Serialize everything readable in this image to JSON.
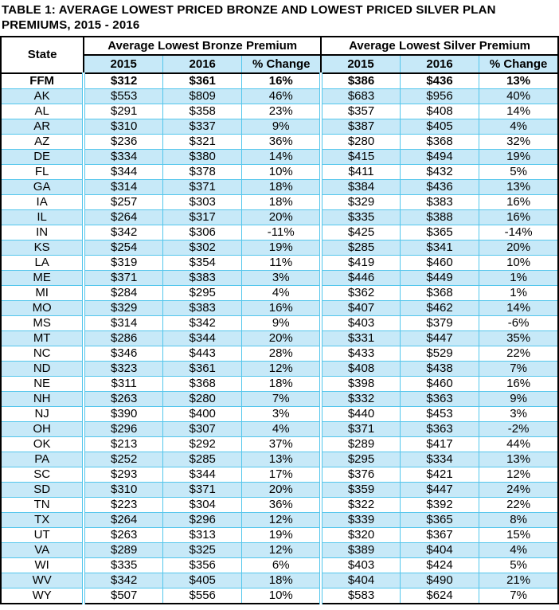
{
  "title": "TABLE 1: AVERAGE LOWEST PRICED BRONZE AND LOWEST PRICED SILVER PLAN PREMIUMS, 2015 - 2016",
  "colors": {
    "row_stripe": "#c7e9f8",
    "grid_line": "#53c6ec",
    "border": "#000000",
    "background": "#ffffff",
    "text": "#000000"
  },
  "table": {
    "state_header": "State",
    "group_headers": [
      "Average Lowest Bronze Premium",
      "Average Lowest Silver Premium"
    ],
    "sub_headers": [
      "2015",
      "2016",
      "% Change"
    ],
    "rows": [
      {
        "state": "FFM",
        "values": [
          "$312",
          "$361",
          "16%",
          "$386",
          "$436",
          "13%"
        ],
        "emphasis": true
      },
      {
        "state": "AK",
        "values": [
          "$553",
          "$809",
          "46%",
          "$683",
          "$956",
          "40%"
        ],
        "emphasis": false
      },
      {
        "state": "AL",
        "values": [
          "$291",
          "$358",
          "23%",
          "$357",
          "$408",
          "14%"
        ],
        "emphasis": false
      },
      {
        "state": "AR",
        "values": [
          "$310",
          "$337",
          "9%",
          "$387",
          "$405",
          "4%"
        ],
        "emphasis": false
      },
      {
        "state": "AZ",
        "values": [
          "$236",
          "$321",
          "36%",
          "$280",
          "$368",
          "32%"
        ],
        "emphasis": false
      },
      {
        "state": "DE",
        "values": [
          "$334",
          "$380",
          "14%",
          "$415",
          "$494",
          "19%"
        ],
        "emphasis": false
      },
      {
        "state": "FL",
        "values": [
          "$344",
          "$378",
          "10%",
          "$411",
          "$432",
          "5%"
        ],
        "emphasis": false
      },
      {
        "state": "GA",
        "values": [
          "$314",
          "$371",
          "18%",
          "$384",
          "$436",
          "13%"
        ],
        "emphasis": false
      },
      {
        "state": "IA",
        "values": [
          "$257",
          "$303",
          "18%",
          "$329",
          "$383",
          "16%"
        ],
        "emphasis": false
      },
      {
        "state": "IL",
        "values": [
          "$264",
          "$317",
          "20%",
          "$335",
          "$388",
          "16%"
        ],
        "emphasis": false
      },
      {
        "state": "IN",
        "values": [
          "$342",
          "$306",
          "-11%",
          "$425",
          "$365",
          "-14%"
        ],
        "emphasis": false
      },
      {
        "state": "KS",
        "values": [
          "$254",
          "$302",
          "19%",
          "$285",
          "$341",
          "20%"
        ],
        "emphasis": false
      },
      {
        "state": "LA",
        "values": [
          "$319",
          "$354",
          "11%",
          "$419",
          "$460",
          "10%"
        ],
        "emphasis": false
      },
      {
        "state": "ME",
        "values": [
          "$371",
          "$383",
          "3%",
          "$446",
          "$449",
          "1%"
        ],
        "emphasis": false
      },
      {
        "state": "MI",
        "values": [
          "$284",
          "$295",
          "4%",
          "$362",
          "$368",
          "1%"
        ],
        "emphasis": false
      },
      {
        "state": "MO",
        "values": [
          "$329",
          "$383",
          "16%",
          "$407",
          "$462",
          "14%"
        ],
        "emphasis": false
      },
      {
        "state": "MS",
        "values": [
          "$314",
          "$342",
          "9%",
          "$403",
          "$379",
          "-6%"
        ],
        "emphasis": false
      },
      {
        "state": "MT",
        "values": [
          "$286",
          "$344",
          "20%",
          "$331",
          "$447",
          "35%"
        ],
        "emphasis": false
      },
      {
        "state": "NC",
        "values": [
          "$346",
          "$443",
          "28%",
          "$433",
          "$529",
          "22%"
        ],
        "emphasis": false
      },
      {
        "state": "ND",
        "values": [
          "$323",
          "$361",
          "12%",
          "$408",
          "$438",
          "7%"
        ],
        "emphasis": false
      },
      {
        "state": "NE",
        "values": [
          "$311",
          "$368",
          "18%",
          "$398",
          "$460",
          "16%"
        ],
        "emphasis": false
      },
      {
        "state": "NH",
        "values": [
          "$263",
          "$280",
          "7%",
          "$332",
          "$363",
          "9%"
        ],
        "emphasis": false
      },
      {
        "state": "NJ",
        "values": [
          "$390",
          "$400",
          "3%",
          "$440",
          "$453",
          "3%"
        ],
        "emphasis": false
      },
      {
        "state": "OH",
        "values": [
          "$296",
          "$307",
          "4%",
          "$371",
          "$363",
          "-2%"
        ],
        "emphasis": false
      },
      {
        "state": "OK",
        "values": [
          "$213",
          "$292",
          "37%",
          "$289",
          "$417",
          "44%"
        ],
        "emphasis": false
      },
      {
        "state": "PA",
        "values": [
          "$252",
          "$285",
          "13%",
          "$295",
          "$334",
          "13%"
        ],
        "emphasis": false
      },
      {
        "state": "SC",
        "values": [
          "$293",
          "$344",
          "17%",
          "$376",
          "$421",
          "12%"
        ],
        "emphasis": false
      },
      {
        "state": "SD",
        "values": [
          "$310",
          "$371",
          "20%",
          "$359",
          "$447",
          "24%"
        ],
        "emphasis": false
      },
      {
        "state": "TN",
        "values": [
          "$223",
          "$304",
          "36%",
          "$322",
          "$392",
          "22%"
        ],
        "emphasis": false
      },
      {
        "state": "TX",
        "values": [
          "$264",
          "$296",
          "12%",
          "$339",
          "$365",
          "8%"
        ],
        "emphasis": false
      },
      {
        "state": "UT",
        "values": [
          "$263",
          "$313",
          "19%",
          "$320",
          "$367",
          "15%"
        ],
        "emphasis": false
      },
      {
        "state": "VA",
        "values": [
          "$289",
          "$325",
          "12%",
          "$389",
          "$404",
          "4%"
        ],
        "emphasis": false
      },
      {
        "state": "WI",
        "values": [
          "$335",
          "$356",
          "6%",
          "$403",
          "$424",
          "5%"
        ],
        "emphasis": false
      },
      {
        "state": "WV",
        "values": [
          "$342",
          "$405",
          "18%",
          "$404",
          "$490",
          "21%"
        ],
        "emphasis": false
      },
      {
        "state": "WY",
        "values": [
          "$507",
          "$556",
          "10%",
          "$583",
          "$624",
          "7%"
        ],
        "emphasis": false
      }
    ]
  }
}
